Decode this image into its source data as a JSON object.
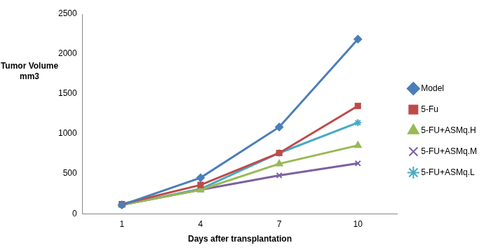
{
  "chart_data": {
    "type": "line",
    "x_label": "Days after transplantation",
    "y_label": [
      "Tumor Volume",
      "mm3"
    ],
    "categories": [
      "1",
      "4",
      "7",
      "10"
    ],
    "series": [
      {
        "name": "Model",
        "color": "#4a7ebb",
        "marker": "diamond",
        "values": [
          110,
          450,
          1085,
          2185
        ]
      },
      {
        "name": "5-Fu",
        "color": "#be4b48",
        "marker": "square",
        "values": [
          120,
          360,
          760,
          1350
        ]
      },
      {
        "name": "5-FU+ASMq.H",
        "color": "#98b954",
        "marker": "triangle",
        "values": [
          110,
          300,
          625,
          855
        ]
      },
      {
        "name": "5-FU+ASMq.M",
        "color": "#7d60a0",
        "marker": "x",
        "values": [
          110,
          300,
          480,
          630
        ]
      },
      {
        "name": "5-FU+ASMq.L",
        "color": "#46aac5",
        "marker": "star",
        "values": [
          110,
          310,
          760,
          1140
        ]
      }
    ],
    "ylim": [
      0,
      2500
    ],
    "yticks": [
      0,
      500,
      1000,
      1500,
      2000,
      2500
    ],
    "grid": false,
    "legend": "right"
  }
}
